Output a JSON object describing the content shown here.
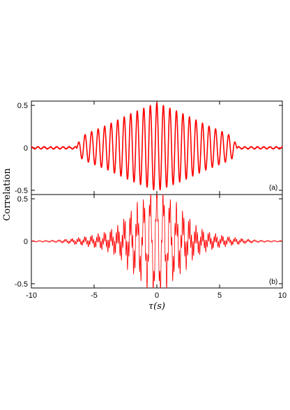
{
  "chart_data": [
    {
      "type": "line",
      "panel_label": "(a)",
      "xlim": [
        -10,
        10
      ],
      "ylim": [
        -0.55,
        0.55
      ],
      "xticks": [
        -10,
        -5,
        0,
        5,
        10
      ],
      "yticks": [
        -0.5,
        0,
        0.5
      ],
      "ytick_labels": [
        "-0.5",
        "0",
        "0.5"
      ],
      "xtick_labels": [
        "",
        "",
        "",
        "",
        ""
      ],
      "ylabel": "Correlation",
      "grid": false,
      "series": [
        {
          "color": "#ff0000",
          "line_width": 1.6,
          "envelope_points": [
            [
              0,
              0.52
            ],
            [
              2,
              0.4
            ],
            [
              4,
              0.26
            ],
            [
              5.5,
              0.17
            ],
            [
              6,
              0.13
            ],
            [
              6.4,
              0.02
            ],
            [
              10,
              0.015
            ]
          ],
          "oscillation_period_s": 0.52,
          "peak_value_at_zero": 0.55,
          "trough_value_near_zero": -0.5
        }
      ]
    },
    {
      "type": "line",
      "panel_label": "(b)",
      "xlim": [
        -10,
        10
      ],
      "ylim": [
        -0.55,
        0.55
      ],
      "xticks": [
        -10,
        -5,
        0,
        5,
        10
      ],
      "yticks": [
        -0.5,
        0,
        0.5
      ],
      "ytick_labels": [
        "-0.5",
        "0",
        "0.5"
      ],
      "xtick_labels": [
        "-10",
        "-5",
        "0",
        "5",
        "10"
      ],
      "xlabel": "τ(s)",
      "grid": false,
      "series": [
        {
          "color": "#ff0000",
          "line_width": 0.8,
          "envelope_points": [
            [
              0,
              0.55
            ],
            [
              1.5,
              0.42
            ],
            [
              2.5,
              0.3
            ],
            [
              3,
              0.2
            ],
            [
              4,
              0.12
            ],
            [
              5,
              0.08
            ],
            [
              6,
              0.05
            ],
            [
              7,
              0.03
            ],
            [
              8,
              0.015
            ],
            [
              10,
              0.008
            ]
          ],
          "slow_period_s": 0.52,
          "fast_period_s": 0.12,
          "peak_value_at_zero": 0.57,
          "trough_value_near_zero": -0.5
        }
      ]
    }
  ]
}
